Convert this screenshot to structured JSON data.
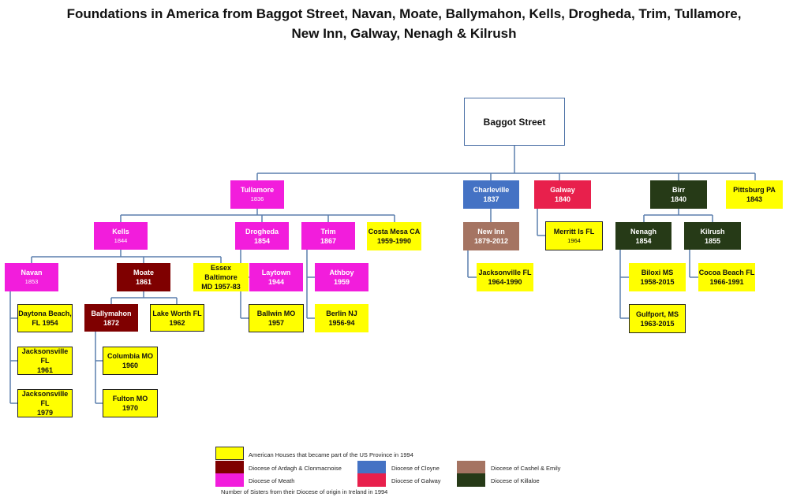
{
  "title": {
    "line1": "Foundations in America from Baggot Street, Navan, Moate, Ballymahon, Kells, Drogheda, Trim, Tullamore,",
    "line2": "New Inn, Galway, Nenagh & Kilrush"
  },
  "colors": {
    "american": "#ffff00",
    "ardagh": "#7f0000",
    "meath": "#f21ddc",
    "cloyne": "#4472c4",
    "galway": "#e8204c",
    "cashel": "#a57462",
    "killaloe": "#263a17",
    "connector": "#5b7fae"
  },
  "nodes": [
    {
      "id": "baggot",
      "line1": "Baggot Street",
      "line2": "",
      "diocese": "root"
    },
    {
      "id": "tullamore",
      "line1": "Tullamore",
      "line2": "1836",
      "diocese": "meath"
    },
    {
      "id": "charleville",
      "line1": "Charleville",
      "line2": "1837",
      "diocese": "cloyne"
    },
    {
      "id": "galway",
      "line1": "Galway",
      "line2": "1840",
      "diocese": "galway"
    },
    {
      "id": "birr",
      "line1": "Birr",
      "line2": "1840",
      "diocese": "killaloe"
    },
    {
      "id": "pittsburg",
      "line1": "Pittsburg   PA",
      "line2": "1843",
      "diocese": "american"
    },
    {
      "id": "kells",
      "line1": "Kells",
      "line2": "1844",
      "diocese": "meath"
    },
    {
      "id": "drogheda",
      "line1": "Drogheda",
      "line2": "1854",
      "diocese": "meath"
    },
    {
      "id": "trim",
      "line1": "Trim",
      "line2": "1867",
      "diocese": "meath"
    },
    {
      "id": "costamesa",
      "line1": "Costa Mesa  CA",
      "line2": "1959-1990",
      "diocese": "american"
    },
    {
      "id": "newinn",
      "line1": "New Inn",
      "line2": "1879-2012",
      "diocese": "cashel"
    },
    {
      "id": "merritt",
      "line1": "Merritt Is FL",
      "line2": "1964",
      "diocese": "american"
    },
    {
      "id": "nenagh",
      "line1": "Nenagh",
      "line2": "1854",
      "diocese": "killaloe"
    },
    {
      "id": "kilrush",
      "line1": "Kilrush",
      "line2": "1855",
      "diocese": "killaloe"
    },
    {
      "id": "navan",
      "line1": "Navan",
      "line2": "1853",
      "diocese": "meath"
    },
    {
      "id": "moate",
      "line1": "Moate",
      "line2": "1861",
      "diocese": "ardagh"
    },
    {
      "id": "essex",
      "line1": "Essex  Baltimore",
      "line2": "MD 1957-83",
      "diocese": "american"
    },
    {
      "id": "laytown",
      "line1": "Laytown",
      "line2": "1944",
      "diocese": "meath"
    },
    {
      "id": "athboy",
      "line1": "Athboy",
      "line2": "1959",
      "diocese": "meath"
    },
    {
      "id": "jax6490",
      "line1": "Jacksonville FL",
      "line2": "1964-1990",
      "diocese": "american"
    },
    {
      "id": "biloxi",
      "line1": "Biloxi  MS",
      "line2": "1958-2015",
      "diocese": "american"
    },
    {
      "id": "cocoa",
      "line1": "Cocoa Beach FL",
      "line2": "1966-1991",
      "diocese": "american"
    },
    {
      "id": "daytona",
      "line1": "Daytona Beach,",
      "line2": "FL 1954",
      "diocese": "american"
    },
    {
      "id": "ballymahon",
      "line1": "Ballymahon",
      "line2": "1872",
      "diocese": "ardagh"
    },
    {
      "id": "lakeworth",
      "line1": "Lake Worth FL",
      "line2": "1962",
      "diocese": "american"
    },
    {
      "id": "ballwin",
      "line1": "Ballwin MO",
      "line2": "1957",
      "diocese": "american"
    },
    {
      "id": "berlin",
      "line1": "Berlin  NJ",
      "line2": "1956-94",
      "diocese": "american"
    },
    {
      "id": "gulfport",
      "line1": "Gulfport, MS",
      "line2": "1963-2015",
      "diocese": "american"
    },
    {
      "id": "jax61",
      "line1": "Jacksonsville FL",
      "line2": "1961",
      "diocese": "american"
    },
    {
      "id": "columbia",
      "line1": "Columbia  MO",
      "line2": "1960",
      "diocese": "american"
    },
    {
      "id": "jax79",
      "line1": "Jacksonsville FL",
      "line2": "1979",
      "diocese": "american"
    },
    {
      "id": "fulton",
      "line1": "Fulton MO",
      "line2": "1970",
      "diocese": "american"
    }
  ],
  "legend": {
    "items": [
      {
        "key": "american",
        "label": "American Houses that became part of the US Province in 1994"
      },
      {
        "key": "ardagh",
        "label": "Diocese of Ardagh & Clonmacnoise"
      },
      {
        "key": "meath",
        "label": "Diocese of Meath"
      },
      {
        "key": "cloyne",
        "label": "Diocese of Cloyne"
      },
      {
        "key": "galway",
        "label": "Diocese of Galway"
      },
      {
        "key": "cashel",
        "label": "Diocese of Cashel & Emily"
      },
      {
        "key": "killaloe",
        "label": "Diocese of Killaloe"
      }
    ],
    "footer": "Number of Sisters from their  Diocese of origin in Ireland in 1994"
  }
}
